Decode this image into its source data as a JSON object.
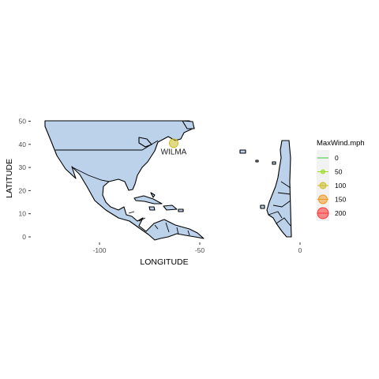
{
  "chart_data": {
    "type": "map",
    "xlabel": "LONGITUDE",
    "ylabel": "LATITUDE",
    "xlim": [
      -132,
      3
    ],
    "ylim": [
      -1,
      52
    ],
    "x_ticks": [
      {
        "value": -100,
        "label": "-100"
      },
      {
        "value": -50,
        "label": "-50"
      },
      {
        "value": 0,
        "label": "0"
      }
    ],
    "y_ticks": [
      {
        "value": 0,
        "label": "0"
      },
      {
        "value": 10,
        "label": "10"
      },
      {
        "value": 20,
        "label": "20"
      },
      {
        "value": 30,
        "label": "30"
      },
      {
        "value": 40,
        "label": "40"
      },
      {
        "value": 50,
        "label": "50"
      }
    ],
    "land_color": "#bcd2ea",
    "grid": false,
    "legend": {
      "title": "MaxWind.mph",
      "position": "right",
      "entries": [
        {
          "label": "0",
          "value": 0,
          "color": "#33cc33"
        },
        {
          "label": "50",
          "value": 50,
          "color": "#99dd22"
        },
        {
          "label": "100",
          "value": 100,
          "color": "#ccbb22"
        },
        {
          "label": "150",
          "value": 150,
          "color": "#ee9922"
        },
        {
          "label": "200",
          "value": 200,
          "color": "#ff3333"
        }
      ]
    },
    "points": [
      {
        "name": "WILMA",
        "lon": -63,
        "lat": 40.5,
        "max_wind_mph": 100,
        "color": "#ccbb22"
      }
    ]
  }
}
